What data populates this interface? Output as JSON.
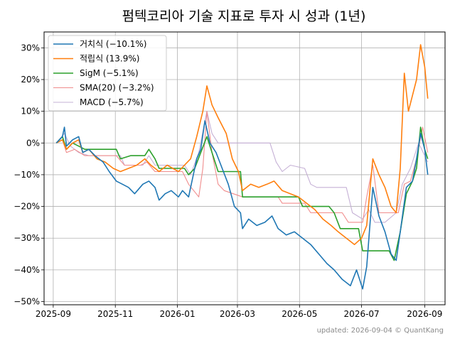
{
  "chart_data": {
    "type": "line",
    "title": "펌텍코리아 기술 지표로 투자 시 성과 (1년)",
    "footer": "updated: 2026-09-04 © QuantKang",
    "xlabel": "",
    "ylabel": "",
    "x_range": [
      "2025-08-23",
      "2026-09-21"
    ],
    "ylim": [
      -51,
      35
    ],
    "x_ticks": [
      "2025-09",
      "2025-11",
      "2026-01",
      "2026-03",
      "2026-05",
      "2026-07",
      "2026-09"
    ],
    "y_ticks": [
      30,
      20,
      10,
      0,
      -10,
      -20,
      -30,
      -40,
      -50
    ],
    "y_tick_labels": [
      "30%",
      "20%",
      "10%",
      "0%",
      "−10%",
      "−20%",
      "−30%",
      "−40%",
      "−50%"
    ],
    "grid": true,
    "legend_position": "top-left",
    "series": [
      {
        "name": "거치식 (−10.1%)",
        "color": "#1f77b4",
        "width": 1.6,
        "points": [
          [
            "2025-09-04",
            0
          ],
          [
            "2025-09-10",
            2
          ],
          [
            "2025-09-12",
            5
          ],
          [
            "2025-09-14",
            -1
          ],
          [
            "2025-09-20",
            1
          ],
          [
            "2025-09-26",
            2
          ],
          [
            "2025-09-30",
            -3
          ],
          [
            "2025-10-06",
            -2
          ],
          [
            "2025-10-12",
            -4
          ],
          [
            "2025-10-20",
            -6
          ],
          [
            "2025-10-26",
            -9
          ],
          [
            "2025-11-02",
            -12
          ],
          [
            "2025-11-08",
            -13
          ],
          [
            "2025-11-14",
            -14
          ],
          [
            "2025-11-20",
            -16
          ],
          [
            "2025-11-28",
            -13
          ],
          [
            "2025-12-04",
            -12
          ],
          [
            "2025-12-10",
            -14
          ],
          [
            "2025-12-14",
            -18
          ],
          [
            "2025-12-20",
            -16
          ],
          [
            "2025-12-26",
            -15
          ],
          [
            "2026-01-02",
            -17
          ],
          [
            "2026-01-06",
            -15
          ],
          [
            "2026-01-12",
            -17
          ],
          [
            "2026-01-16",
            -11
          ],
          [
            "2026-01-20",
            -5
          ],
          [
            "2026-01-24",
            -2
          ],
          [
            "2026-01-28",
            7
          ],
          [
            "2026-02-02",
            0
          ],
          [
            "2026-02-08",
            -3
          ],
          [
            "2026-02-14",
            -8
          ],
          [
            "2026-02-20",
            -13
          ],
          [
            "2026-02-26",
            -20
          ],
          [
            "2026-03-04",
            -22
          ],
          [
            "2026-03-06",
            -27
          ],
          [
            "2026-03-12",
            -24
          ],
          [
            "2026-03-20",
            -26
          ],
          [
            "2026-03-28",
            -25
          ],
          [
            "2026-04-04",
            -23
          ],
          [
            "2026-04-10",
            -27
          ],
          [
            "2026-04-18",
            -29
          ],
          [
            "2026-04-26",
            -28
          ],
          [
            "2026-05-04",
            -30
          ],
          [
            "2026-05-12",
            -32
          ],
          [
            "2026-05-20",
            -35
          ],
          [
            "2026-05-28",
            -38
          ],
          [
            "2026-06-04",
            -40
          ],
          [
            "2026-06-12",
            -43
          ],
          [
            "2026-06-20",
            -45
          ],
          [
            "2026-06-26",
            -40
          ],
          [
            "2026-07-02",
            -46
          ],
          [
            "2026-07-06",
            -39
          ],
          [
            "2026-07-12",
            -14
          ],
          [
            "2026-07-18",
            -23
          ],
          [
            "2026-07-24",
            -28
          ],
          [
            "2026-07-30",
            -35
          ],
          [
            "2026-08-04",
            -37
          ],
          [
            "2026-08-08",
            -28
          ],
          [
            "2026-08-14",
            -14
          ],
          [
            "2026-08-20",
            -12
          ],
          [
            "2026-08-24",
            -5
          ],
          [
            "2026-08-28",
            3
          ],
          [
            "2026-09-01",
            -2
          ],
          [
            "2026-09-04",
            -10
          ]
        ]
      },
      {
        "name": "적립식 (13.9%)",
        "color": "#ff7f0e",
        "width": 1.6,
        "points": [
          [
            "2025-09-04",
            0
          ],
          [
            "2025-09-10",
            1
          ],
          [
            "2025-09-14",
            -2
          ],
          [
            "2025-09-20",
            0
          ],
          [
            "2025-09-26",
            1
          ],
          [
            "2025-09-30",
            -3
          ],
          [
            "2025-10-06",
            -2
          ],
          [
            "2025-10-14",
            -5
          ],
          [
            "2025-10-22",
            -6
          ],
          [
            "2025-10-30",
            -8
          ],
          [
            "2025-11-06",
            -9
          ],
          [
            "2025-11-14",
            -8
          ],
          [
            "2025-11-22",
            -7
          ],
          [
            "2025-11-30",
            -5
          ],
          [
            "2025-12-06",
            -7
          ],
          [
            "2025-12-14",
            -9
          ],
          [
            "2025-12-22",
            -7
          ],
          [
            "2026-01-02",
            -9
          ],
          [
            "2026-01-08",
            -7
          ],
          [
            "2026-01-14",
            -5
          ],
          [
            "2026-01-20",
            2
          ],
          [
            "2026-01-26",
            10
          ],
          [
            "2026-01-30",
            18
          ],
          [
            "2026-02-04",
            12
          ],
          [
            "2026-02-10",
            8
          ],
          [
            "2026-02-18",
            3
          ],
          [
            "2026-02-24",
            -5
          ],
          [
            "2026-03-02",
            -9
          ],
          [
            "2026-03-06",
            -15
          ],
          [
            "2026-03-14",
            -13
          ],
          [
            "2026-03-22",
            -14
          ],
          [
            "2026-03-30",
            -13
          ],
          [
            "2026-04-06",
            -12
          ],
          [
            "2026-04-14",
            -15
          ],
          [
            "2026-04-22",
            -16
          ],
          [
            "2026-04-30",
            -17
          ],
          [
            "2026-05-08",
            -19
          ],
          [
            "2026-05-16",
            -21
          ],
          [
            "2026-05-24",
            -24
          ],
          [
            "2026-06-01",
            -26
          ],
          [
            "2026-06-08",
            -28
          ],
          [
            "2026-06-16",
            -30
          ],
          [
            "2026-06-24",
            -32
          ],
          [
            "2026-07-01",
            -30
          ],
          [
            "2026-07-06",
            -26
          ],
          [
            "2026-07-12",
            -5
          ],
          [
            "2026-07-18",
            -10
          ],
          [
            "2026-07-24",
            -14
          ],
          [
            "2026-07-30",
            -20
          ],
          [
            "2026-08-04",
            -22
          ],
          [
            "2026-08-08",
            -8
          ],
          [
            "2026-08-12",
            22
          ],
          [
            "2026-08-16",
            10
          ],
          [
            "2026-08-20",
            15
          ],
          [
            "2026-08-24",
            20
          ],
          [
            "2026-08-28",
            31
          ],
          [
            "2026-09-01",
            24
          ],
          [
            "2026-09-04",
            14
          ]
        ]
      },
      {
        "name": "SigM (−5.1%)",
        "color": "#2ca02c",
        "width": 1.6,
        "points": [
          [
            "2025-09-04",
            0
          ],
          [
            "2025-09-10",
            2
          ],
          [
            "2025-09-14",
            -2
          ],
          [
            "2025-09-20",
            0
          ],
          [
            "2025-09-26",
            -1
          ],
          [
            "2025-10-02",
            -2
          ],
          [
            "2025-11-02",
            -2
          ],
          [
            "2025-11-06",
            -5
          ],
          [
            "2025-11-16",
            -4
          ],
          [
            "2025-11-30",
            -4
          ],
          [
            "2025-12-04",
            -2
          ],
          [
            "2025-12-10",
            -5
          ],
          [
            "2025-12-14",
            -8
          ],
          [
            "2026-01-08",
            -8
          ],
          [
            "2026-01-12",
            -10
          ],
          [
            "2026-01-18",
            -8
          ],
          [
            "2026-01-24",
            -3
          ],
          [
            "2026-01-30",
            2
          ],
          [
            "2026-02-04",
            -3
          ],
          [
            "2026-02-10",
            -9
          ],
          [
            "2026-03-04",
            -9
          ],
          [
            "2026-03-06",
            -17
          ],
          [
            "2026-04-30",
            -17
          ],
          [
            "2026-05-04",
            -20
          ],
          [
            "2026-05-30",
            -20
          ],
          [
            "2026-06-04",
            -22
          ],
          [
            "2026-06-10",
            -27
          ],
          [
            "2026-06-28",
            -27
          ],
          [
            "2026-07-02",
            -34
          ],
          [
            "2026-07-28",
            -34
          ],
          [
            "2026-08-02",
            -37
          ],
          [
            "2026-08-08",
            -28
          ],
          [
            "2026-08-14",
            -16
          ],
          [
            "2026-08-20",
            -12
          ],
          [
            "2026-08-24",
            -8
          ],
          [
            "2026-08-28",
            5
          ],
          [
            "2026-09-01",
            -2
          ],
          [
            "2026-09-04",
            -5
          ]
        ]
      },
      {
        "name": "SMA(20) (−3.2%)",
        "color": "#f08c8c",
        "width": 1.1,
        "points": [
          [
            "2025-09-04",
            0
          ],
          [
            "2025-09-10",
            1
          ],
          [
            "2025-09-14",
            -3
          ],
          [
            "2025-09-22",
            -2
          ],
          [
            "2025-10-02",
            -4
          ],
          [
            "2025-11-02",
            -4
          ],
          [
            "2025-11-10",
            -7
          ],
          [
            "2025-11-26",
            -7
          ],
          [
            "2025-12-02",
            -6
          ],
          [
            "2025-12-10",
            -9
          ],
          [
            "2026-01-06",
            -9
          ],
          [
            "2026-01-12",
            -13
          ],
          [
            "2026-01-22",
            -17
          ],
          [
            "2026-01-26",
            -8
          ],
          [
            "2026-01-30",
            10
          ],
          [
            "2026-02-04",
            -3
          ],
          [
            "2026-02-10",
            -13
          ],
          [
            "2026-02-16",
            -15
          ],
          [
            "2026-03-06",
            -17
          ],
          [
            "2026-04-10",
            -17
          ],
          [
            "2026-04-14",
            -19
          ],
          [
            "2026-05-06",
            -19
          ],
          [
            "2026-05-12",
            -22
          ],
          [
            "2026-06-12",
            -22
          ],
          [
            "2026-06-18",
            -25
          ],
          [
            "2026-07-02",
            -25
          ],
          [
            "2026-07-06",
            -17
          ],
          [
            "2026-07-12",
            -7
          ],
          [
            "2026-07-18",
            -22
          ],
          [
            "2026-07-30",
            -22
          ],
          [
            "2026-08-06",
            -22
          ],
          [
            "2026-08-12",
            -13
          ],
          [
            "2026-08-18",
            -12
          ],
          [
            "2026-08-24",
            -5
          ],
          [
            "2026-08-30",
            5
          ],
          [
            "2026-09-04",
            -3
          ]
        ]
      },
      {
        "name": "MACD (−5.7%)",
        "color": "#c5b0d5",
        "width": 1.1,
        "points": [
          [
            "2025-09-04",
            0
          ],
          [
            "2025-09-12",
            3
          ],
          [
            "2025-09-18",
            -1
          ],
          [
            "2025-09-26",
            -3
          ],
          [
            "2025-10-06",
            -4
          ],
          [
            "2025-11-06",
            -4
          ],
          [
            "2025-11-10",
            -7
          ],
          [
            "2025-11-28",
            -7
          ],
          [
            "2025-12-04",
            -4
          ],
          [
            "2025-12-10",
            -7
          ],
          [
            "2026-01-08",
            -7
          ],
          [
            "2026-01-14",
            -10
          ],
          [
            "2026-01-22",
            -3
          ],
          [
            "2026-01-30",
            10
          ],
          [
            "2026-02-04",
            3
          ],
          [
            "2026-02-10",
            0
          ],
          [
            "2026-03-10",
            0
          ],
          [
            "2026-04-02",
            0
          ],
          [
            "2026-04-08",
            -6
          ],
          [
            "2026-04-14",
            -9
          ],
          [
            "2026-04-22",
            -7
          ],
          [
            "2026-05-06",
            -8
          ],
          [
            "2026-05-12",
            -13
          ],
          [
            "2026-05-18",
            -14
          ],
          [
            "2026-06-10",
            -14
          ],
          [
            "2026-06-16",
            -14
          ],
          [
            "2026-06-22",
            -22
          ],
          [
            "2026-07-02",
            -24
          ],
          [
            "2026-07-08",
            -21
          ],
          [
            "2026-07-14",
            -25
          ],
          [
            "2026-07-24",
            -25
          ],
          [
            "2026-08-04",
            -22
          ],
          [
            "2026-08-10",
            -13
          ],
          [
            "2026-08-18",
            -8
          ],
          [
            "2026-08-26",
            0
          ],
          [
            "2026-09-01",
            -4
          ],
          [
            "2026-09-04",
            -6
          ]
        ]
      }
    ]
  }
}
